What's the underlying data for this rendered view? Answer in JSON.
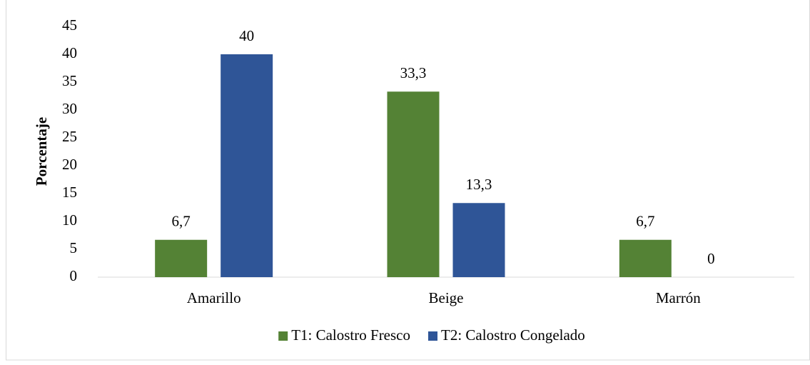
{
  "chart_data": {
    "type": "bar",
    "ylabel": "Porcentaje",
    "categories": [
      "Amarillo",
      "Beige",
      "Marrón"
    ],
    "series": [
      {
        "name": "T1: Calostro Fresco",
        "color": "#548235",
        "values": [
          6.7,
          33.3,
          6.7
        ],
        "value_labels": [
          "6,7",
          "33,3",
          "6,7"
        ]
      },
      {
        "name": "T2: Calostro Congelado",
        "color": "#2f5597",
        "values": [
          40,
          13.3,
          0
        ],
        "value_labels": [
          "40",
          "13,3",
          "0"
        ]
      }
    ],
    "ylim": [
      0,
      45
    ],
    "yticks": [
      0,
      5,
      10,
      15,
      20,
      25,
      30,
      35,
      40,
      45
    ],
    "grid": false,
    "legend": "bottom"
  }
}
